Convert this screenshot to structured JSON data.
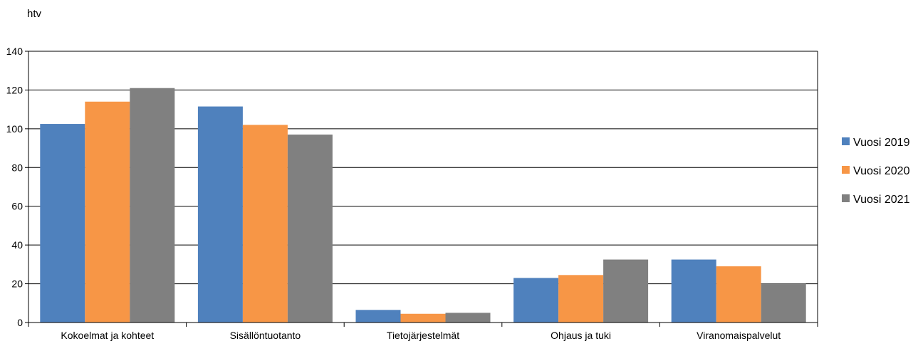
{
  "chart_data": {
    "type": "bar",
    "ylabel": "htv",
    "xlabel": "",
    "ylim": [
      0,
      140
    ],
    "yticks": [
      0,
      20,
      40,
      60,
      80,
      100,
      120,
      140
    ],
    "grid": true,
    "legend_position": "right",
    "categories": [
      "Kokoelmat ja kohteet",
      "Sisällöntuotanto",
      "Tietojärjestelmät",
      "Ohjaus ja tuki",
      "Viranomaispalvelut"
    ],
    "series": [
      {
        "name": "Vuosi 2019",
        "color": "#4F81BD",
        "values": [
          102.5,
          111.5,
          6.5,
          23,
          32.5
        ]
      },
      {
        "name": "Vuosi 2020",
        "color": "#F79646",
        "values": [
          114,
          102,
          4.5,
          24.5,
          29
        ]
      },
      {
        "name": "Vuosi 2021",
        "color": "#808080",
        "values": [
          121,
          97,
          5,
          32.5,
          20
        ]
      }
    ]
  }
}
